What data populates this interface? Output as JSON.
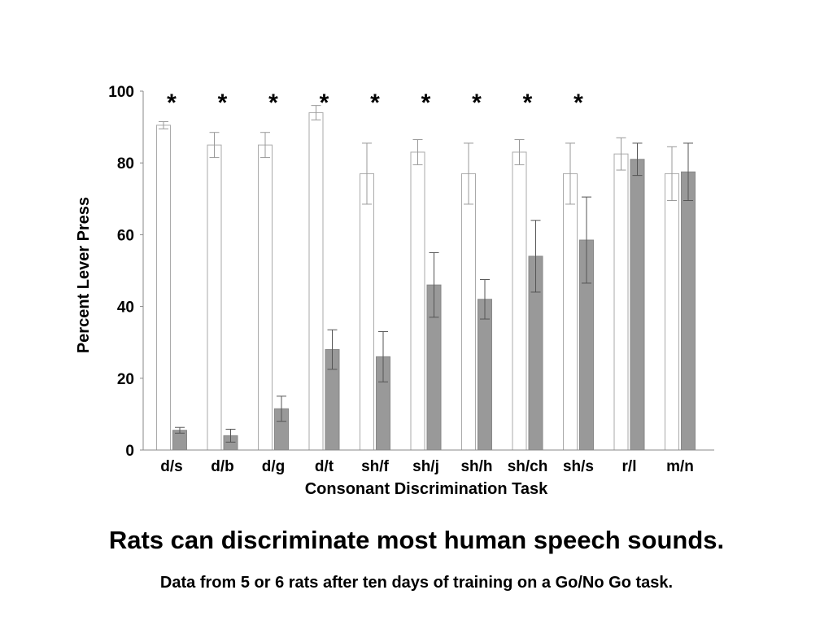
{
  "chart_data": {
    "type": "bar",
    "title": "",
    "xlabel": "Consonant Discrimination Task",
    "ylabel": "Percent Lever Press",
    "ylim": [
      0,
      100
    ],
    "yticks": [
      "0",
      "20",
      "40",
      "60",
      "80",
      "100"
    ],
    "categories": [
      "d/s",
      "d/b",
      "d/g",
      "d/t",
      "sh/f",
      "sh/j",
      "sh/h",
      "sh/ch",
      "sh/s",
      "r/l",
      "m/n"
    ],
    "series": [
      {
        "color": "#ffffff",
        "values": [
          90.5,
          85,
          85,
          94,
          77,
          83,
          77,
          83,
          77,
          82.5,
          77
        ],
        "errors": [
          1,
          3.5,
          3.5,
          2,
          8.5,
          3.5,
          8.5,
          3.5,
          8.5,
          4.5,
          7.5
        ]
      },
      {
        "color": "#999999",
        "values": [
          5.5,
          4,
          11.5,
          28,
          26,
          46,
          42,
          54,
          58.5,
          81,
          77.5
        ],
        "errors": [
          0.8,
          1.8,
          3.5,
          5.5,
          7,
          9,
          5.5,
          10,
          12,
          4.5,
          8
        ]
      }
    ],
    "significance": [
      "*",
      "*",
      "*",
      "*",
      "*",
      "*",
      "*",
      "*",
      "*",
      "",
      ""
    ],
    "grid": false
  },
  "caption": {
    "title": "Rats can discriminate most human speech sounds.",
    "subtitle": "Data from 5 or 6 rats after ten days of training on a Go/No Go task."
  }
}
